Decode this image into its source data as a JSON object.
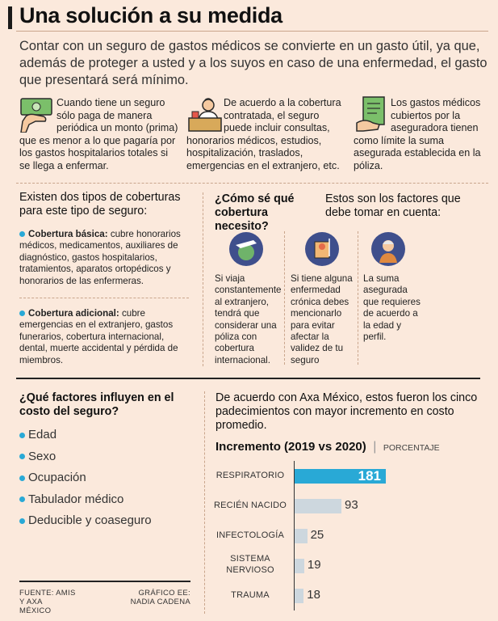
{
  "title": "Una solución a su medida",
  "intro": "Contar con un seguro de gastos médicos se convierte en un gasto útil, ya que, además de proteger a usted y a los suyos en caso de una enfermedad, el gasto que presentará será mínimo.",
  "columns": [
    {
      "icon": "money-hand-icon",
      "text": "Cuando tiene un seguro sólo paga de manera periódica un monto (prima) que es menor a lo que pagaría por los gastos hospitalarios totales si se llega a enfermar."
    },
    {
      "icon": "doctor-icon",
      "text": "De acuerdo a la cobertura contratada, el seguro puede incluir consultas, honorarios médicos, estudios, hospitalización, traslados, emergencias en el extranjero, etc."
    },
    {
      "icon": "policy-document-icon",
      "text": "Los gastos médicos cubiertos por la aseguradora tienen como límite la suma asegurada establecida en la póliza."
    }
  ],
  "coverage": {
    "heading": "Existen dos tipos de coberturas para este tipo de seguro:",
    "basic_label": "Cobertura básica:",
    "basic_text": "cubre honorarios médicos, medicamentos, auxiliares de diagnóstico, gastos hospitalarios, tratamientos, aparatos ortopédicos y honorarios de las enfermeras.",
    "additional_label": "Cobertura adicional:",
    "additional_text": "cubre emergencias en el extranjero, gastos funerarios, cobertura internacional, dental, muerte accidental y pérdida de miembros."
  },
  "question": {
    "heading": "¿Cómo sé qué cobertura necesito?",
    "subheading": "Estos son los factores que debe tomar en cuenta:",
    "factors": [
      {
        "icon": "travel-globe-icon",
        "text": "Si viaja constantemente al extranjero, tendrá que considerar una póliza con cobertura internacional."
      },
      {
        "icon": "chronic-illness-icon",
        "text": "Si tiene alguna enfermedad crónica debes mencionarlo para evitar afectar la validez de tu seguro"
      },
      {
        "icon": "elderly-person-icon",
        "text": "La suma asegurada que requieres de acuerdo a la edad y perfil."
      }
    ]
  },
  "cost": {
    "heading": "¿Qué factores influyen en el costo del seguro?",
    "items": [
      "Edad",
      "Sexo",
      "Ocupación",
      "Tabulador médico",
      "Deducible y coaseguro"
    ]
  },
  "source": {
    "left": "FUENTE: AMIS Y AXA MÉXICO",
    "right": "GRÁFICO EE: NADIA CADENA"
  },
  "chart_intro": "De acuerdo con Axa México, estos fueron los cinco padecimientos con mayor incremento en costo promedio.",
  "chart_data": {
    "type": "bar",
    "title": "Incremento (2019 vs 2020)",
    "subtitle": "PORCENTAJE",
    "categories": [
      "RESPIRATORIO",
      "RECIÉN NACIDO",
      "INFECTOLOGÍA",
      "SISTEMA NERVIOSO",
      "TRAUMA"
    ],
    "values": [
      181,
      93,
      25,
      19,
      18
    ],
    "value_labels": [
      "181",
      "93",
      "25",
      "19",
      "18"
    ],
    "xlim": [
      0,
      181
    ]
  },
  "colors": {
    "accent": "#29a9d6",
    "bar": "#cdd7de",
    "background": "#fbe9dc",
    "icon_circle": "#3f4f8c"
  }
}
